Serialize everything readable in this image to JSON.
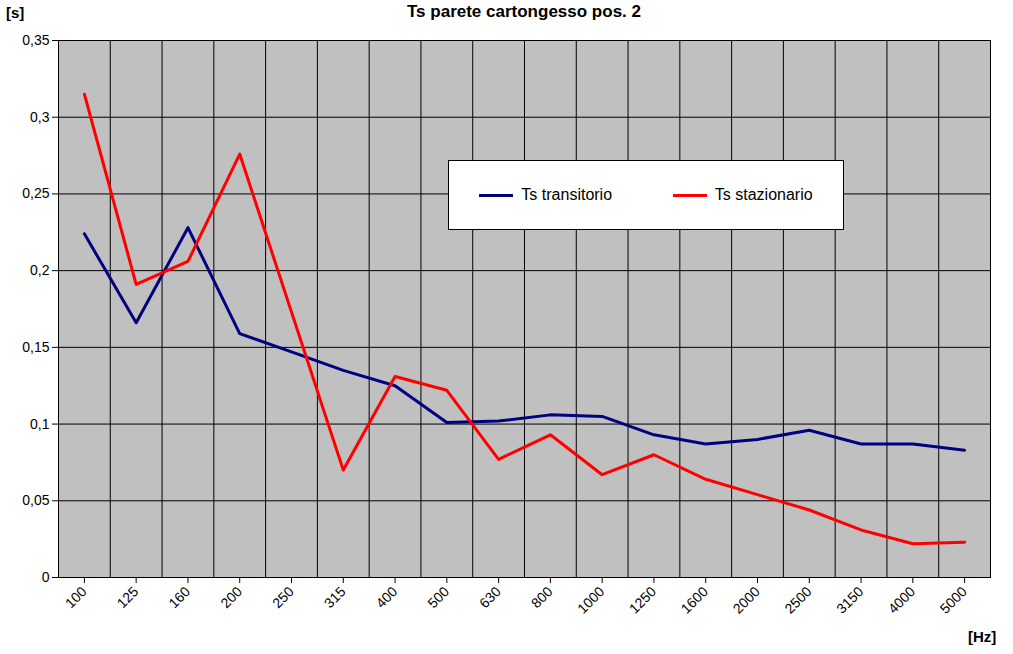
{
  "chart_data": {
    "type": "line",
    "title": "Ts parete cartongesso pos. 2",
    "y_label": "[s]",
    "x_label": "[Hz]",
    "categories": [
      "100",
      "125",
      "160",
      "200",
      "250",
      "315",
      "400",
      "500",
      "630",
      "800",
      "1000",
      "1250",
      "1600",
      "2000",
      "2500",
      "3150",
      "4000",
      "5000"
    ],
    "series": [
      {
        "name": "Ts transitorio",
        "color": "#000080",
        "values": [
          0.224,
          0.166,
          0.228,
          0.159,
          0.147,
          0.135,
          0.125,
          0.101,
          0.102,
          0.106,
          0.105,
          0.093,
          0.087,
          0.09,
          0.096,
          0.087,
          0.087,
          0.083
        ]
      },
      {
        "name": "Ts stazionario",
        "color": "#ff0000",
        "values": [
          0.315,
          0.191,
          0.206,
          0.276,
          0.173,
          0.07,
          0.131,
          0.122,
          0.077,
          0.093,
          0.067,
          0.08,
          0.064,
          0.054,
          0.044,
          0.031,
          0.022,
          0.023
        ]
      }
    ],
    "ylim": [
      0,
      0.35
    ],
    "yticks": [
      0,
      {
        "value": 0.05,
        "label": "0,05"
      },
      {
        "value": 0.1,
        "label": "0,1"
      },
      {
        "value": 0.15,
        "label": "0,15"
      },
      {
        "value": 0.2,
        "label": "0,2"
      },
      {
        "value": 0.25,
        "label": "0,25"
      },
      {
        "value": 0.3,
        "label": "0,3"
      },
      {
        "value": 0.35,
        "label": "0,35"
      }
    ],
    "grid": true,
    "legend": "right"
  }
}
